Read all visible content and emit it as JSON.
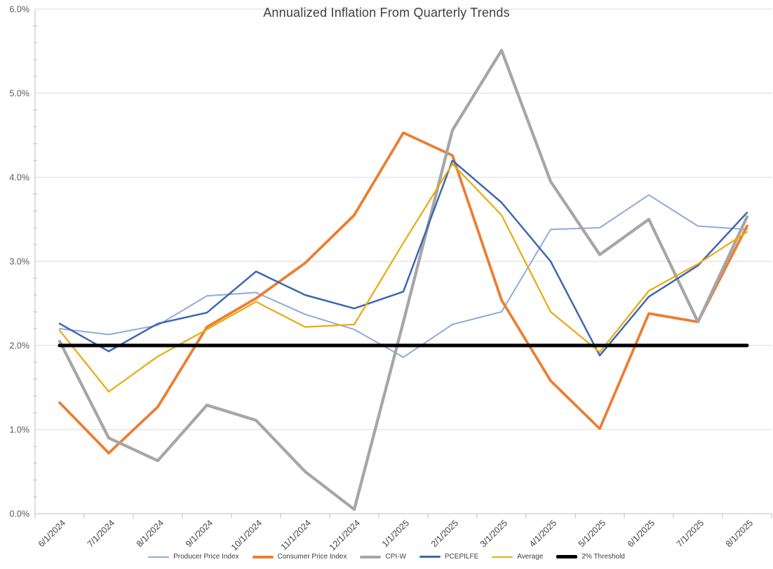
{
  "title": "Annualized Inflation From Quarterly Trends",
  "chart_data": {
    "type": "line",
    "title": "Annualized Inflation From Quarterly Trends",
    "xlabel": "",
    "ylabel": "",
    "ylim": [
      0,
      6
    ],
    "ytick_step": 1,
    "ytick_minor_step": 0.2,
    "ytick_labels": [
      "0.0%",
      "1.0%",
      "2.0%",
      "3.0%",
      "4.0%",
      "5.0%",
      "6.0%"
    ],
    "grid": "horizontal-only",
    "legend_position": "bottom",
    "categories": [
      "6/1/2024",
      "7/1/2024",
      "8/1/2024",
      "9/1/2024",
      "10/1/2024",
      "11/1/2024",
      "12/1/2024",
      "1/1/2025",
      "2/1/2025",
      "3/1/2025",
      "4/1/2025",
      "5/1/2025",
      "6/1/2025",
      "7/1/2025",
      "8/1/2025"
    ],
    "series": [
      {
        "name": "Producer Price Index",
        "color": "#8FAADC",
        "stroke_width": 2,
        "values": [
          2.2,
          2.13,
          2.24,
          2.59,
          2.63,
          2.37,
          2.19,
          1.86,
          2.25,
          2.4,
          3.38,
          3.4,
          3.79,
          3.42,
          3.38
        ]
      },
      {
        "name": "Consumer Price Index",
        "color": "#ED7D31",
        "stroke_width": 3.75,
        "values": [
          1.32,
          0.72,
          1.27,
          2.22,
          2.56,
          2.98,
          3.55,
          4.53,
          4.26,
          2.54,
          1.58,
          1.01,
          2.38,
          2.28,
          3.42
        ]
      },
      {
        "name": "CPI-W",
        "color": "#A6A6A6",
        "stroke_width": 4.25,
        "values": [
          2.05,
          0.9,
          0.63,
          1.29,
          1.11,
          0.5,
          0.05,
          2.28,
          4.56,
          5.51,
          3.95,
          3.08,
          3.5,
          2.28,
          3.53
        ]
      },
      {
        "name": "PCEPILFE",
        "color": "#3D66B0",
        "stroke_width": 2.5,
        "values": [
          2.26,
          1.93,
          2.26,
          2.39,
          2.88,
          2.6,
          2.44,
          2.64,
          4.2,
          3.7,
          3.0,
          1.88,
          2.58,
          2.95,
          3.58
        ]
      },
      {
        "name": "Average",
        "color": "#E9AB11",
        "stroke_width": 2.25,
        "values": [
          2.18,
          1.45,
          1.87,
          2.19,
          2.52,
          2.22,
          2.25,
          3.22,
          4.16,
          3.55,
          2.4,
          1.92,
          2.65,
          2.97,
          3.35
        ]
      },
      {
        "name": "2% Threshold",
        "color": "#000000",
        "stroke_width": 5,
        "values": [
          2,
          2,
          2,
          2,
          2,
          2,
          2,
          2,
          2,
          2,
          2,
          2,
          2,
          2,
          2
        ]
      }
    ],
    "colors": {
      "grid": "#D9D9D9",
      "axis": "#BFBFBF",
      "y_tick_label": "#595959",
      "x_tick_label": "#444444",
      "title": "#404040",
      "legend_text": "#404040",
      "background": "#FFFFFF"
    }
  }
}
